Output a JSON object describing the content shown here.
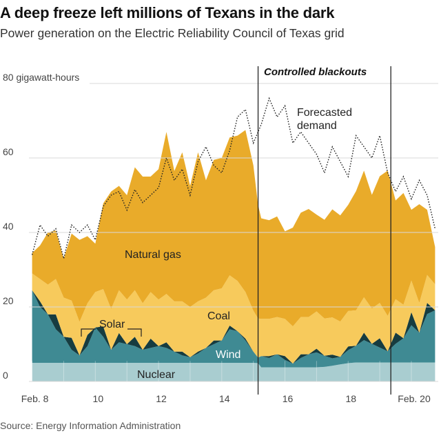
{
  "title": "A deep freeze left millions of Texans in the dark",
  "subtitle": "Power generation on the Electric Reliability Council of Texas grid",
  "source": "Source: Energy Information Administration",
  "colors": {
    "natural_gas": "#E9AB2A",
    "coal": "#F7CA5C",
    "wind": "#3F8A93",
    "solar": "#163C40",
    "nuclear": "#A9CDD0",
    "demand": "#222222",
    "grid": "#D9D9D9"
  },
  "chart_data": {
    "type": "area",
    "title": "A deep freeze left millions of Texans in the dark",
    "subtitle": "Power generation on the Electric Reliability Council of Texas grid",
    "ylabel": "80 gigawatt-hours",
    "y_unit": "gigawatt-hours",
    "ylim": [
      0,
      80
    ],
    "y_ticks": [
      0,
      20,
      40,
      60,
      80
    ],
    "y_tick_labels": [
      "0",
      "20",
      "40",
      "60",
      "80 gigawatt-hours"
    ],
    "xlim": [
      7.9,
      20.85
    ],
    "x_ticks": [
      8,
      10,
      12,
      14,
      16,
      18,
      20
    ],
    "x_tick_labels": [
      "Feb. 8",
      "10",
      "12",
      "14",
      "16",
      "18",
      "Feb. 20"
    ],
    "x_unit": "day of February",
    "grid": true,
    "stacking": "stacked",
    "annotations": {
      "blackouts": "Controlled blackouts",
      "blackout_start": 15.15,
      "blackout_end": 19.35,
      "forecast": [
        "Forecasted",
        "demand"
      ],
      "natural_gas": "Natural gas",
      "coal": "Coal",
      "solar": "Solar",
      "wind": "Wind",
      "nuclear": "Nuclear"
    },
    "x": [
      8.0,
      8.25,
      8.5,
      8.75,
      9.0,
      9.25,
      9.5,
      9.75,
      10.0,
      10.25,
      10.5,
      10.75,
      11.0,
      11.25,
      11.5,
      11.75,
      12.0,
      12.25,
      12.5,
      12.75,
      13.0,
      13.25,
      13.5,
      13.75,
      14.0,
      14.25,
      14.5,
      14.75,
      15.0,
      15.15,
      15.25,
      15.5,
      15.75,
      16.0,
      16.25,
      16.5,
      16.75,
      17.0,
      17.25,
      17.5,
      17.75,
      18.0,
      18.25,
      18.5,
      18.75,
      19.0,
      19.25,
      19.5,
      19.75,
      20.0,
      20.25,
      20.5,
      20.75
    ],
    "series": [
      {
        "name": "Nuclear",
        "values": [
          5.0,
          5.0,
          5.0,
          5.0,
          5.0,
          5.0,
          5.0,
          5.0,
          5.0,
          5.0,
          5.0,
          5.0,
          5.0,
          5.0,
          5.0,
          5.0,
          5.0,
          5.0,
          5.0,
          5.0,
          5.0,
          5.0,
          5.0,
          5.0,
          5.0,
          5.0,
          5.0,
          5.0,
          5.0,
          4.9,
          3.8,
          3.8,
          3.8,
          3.8,
          3.8,
          3.8,
          3.8,
          3.8,
          3.9,
          4.2,
          4.6,
          4.9,
          5.1,
          5.1,
          5.1,
          5.1,
          5.1,
          5.1,
          5.1,
          5.1,
          5.1,
          5.1,
          5.1
        ]
      },
      {
        "name": "Wind",
        "values": [
          19.5,
          15.0,
          13.0,
          9.0,
          7.0,
          3.5,
          2.0,
          4.5,
          9.5,
          7.0,
          3.5,
          5.5,
          5.0,
          4.5,
          3.5,
          4.0,
          4.5,
          4.0,
          3.0,
          2.0,
          1.5,
          2.5,
          4.0,
          5.0,
          6.0,
          9.0,
          8.5,
          6.0,
          3.0,
          1.5,
          3.0,
          2.5,
          3.5,
          2.0,
          1.0,
          2.5,
          3.5,
          4.0,
          3.0,
          2.0,
          2.0,
          3.5,
          4.5,
          6.0,
          5.0,
          4.0,
          3.0,
          5.0,
          6.5,
          10.0,
          8.0,
          13.0,
          14.0
        ]
      },
      {
        "name": "Solar",
        "values": [
          0.0,
          1.5,
          0.0,
          4.0,
          0.0,
          3.2,
          0.0,
          3.0,
          0.0,
          2.8,
          0.0,
          2.5,
          0.0,
          2.5,
          0.0,
          2.5,
          0.0,
          1.5,
          0.0,
          1.0,
          0.0,
          0.5,
          0.0,
          1.0,
          0.0,
          1.0,
          0.0,
          0.5,
          0.0,
          0.0,
          0.0,
          0.5,
          0.0,
          1.0,
          0.0,
          1.0,
          0.0,
          1.0,
          0.0,
          1.0,
          0.0,
          1.0,
          0.0,
          2.0,
          0.0,
          2.5,
          0.0,
          3.0,
          0.0,
          3.5,
          0.0,
          3.0,
          0.0
        ]
      },
      {
        "name": "Coal",
        "values": [
          4.5,
          6.0,
          8.0,
          9.5,
          10.5,
          10.0,
          9.0,
          8.5,
          9.5,
          10.0,
          11.0,
          11.5,
          12.0,
          12.5,
          12.5,
          12.5,
          12.5,
          13.0,
          13.5,
          13.5,
          13.5,
          13.5,
          13.5,
          13.5,
          14.0,
          13.5,
          13.5,
          12.5,
          11.0,
          10.5,
          10.0,
          10.0,
          10.0,
          10.0,
          10.0,
          10.0,
          10.0,
          10.0,
          10.0,
          10.0,
          9.5,
          9.5,
          9.5,
          9.5,
          9.5,
          9.5,
          9.5,
          9.0,
          9.0,
          8.5,
          8.0,
          7.5,
          7.0
        ]
      },
      {
        "name": "Natural gas",
        "values": [
          5.5,
          9.0,
          14.0,
          13.0,
          10.5,
          18.0,
          22.0,
          18.0,
          13.0,
          23.0,
          31.5,
          28.0,
          28.0,
          33.0,
          34.0,
          31.0,
          35.0,
          43.5,
          35.0,
          40.0,
          32.5,
          40.0,
          31.5,
          35.0,
          35.0,
          37.0,
          39.0,
          43.5,
          39.0,
          30.5,
          27.0,
          26.5,
          27.0,
          23.5,
          26.5,
          28.0,
          29.0,
          26.0,
          26.5,
          29.0,
          28.5,
          28.5,
          32.0,
          34.0,
          30.5,
          34.0,
          39.0,
          26.5,
          30.0,
          19.0,
          26.5,
          17.5,
          10.0
        ]
      }
    ],
    "forecasted_demand": {
      "name": "Forecasted demand",
      "x": [
        8.0,
        8.25,
        8.5,
        8.75,
        9.0,
        9.25,
        9.5,
        9.75,
        10.0,
        10.25,
        10.5,
        10.75,
        11.0,
        11.25,
        11.5,
        11.75,
        12.0,
        12.25,
        12.5,
        12.75,
        13.0,
        13.25,
        13.5,
        13.75,
        14.0,
        14.25,
        14.5,
        14.75,
        15.0,
        15.25,
        15.5,
        15.75,
        16.0,
        16.25,
        16.5,
        16.75,
        17.0,
        17.25,
        17.5,
        17.75,
        18.0,
        18.25,
        18.5,
        18.75,
        19.0,
        19.25,
        19.5,
        19.75,
        20.0,
        20.25,
        20.5,
        20.75
      ],
      "values": [
        34.0,
        42.0,
        39.0,
        41.0,
        33.0,
        42.0,
        40.0,
        42.0,
        38.0,
        47.0,
        50.0,
        51.0,
        46.0,
        51.5,
        48.0,
        50.0,
        52.0,
        60.0,
        54.0,
        57.0,
        50.0,
        59.0,
        63.0,
        58.0,
        56.0,
        62.0,
        71.0,
        73.0,
        64.0,
        69.0,
        76.0,
        71.0,
        74.0,
        64.0,
        67.0,
        64.0,
        61.0,
        56.0,
        63.0,
        59.0,
        55.0,
        66.0,
        63.0,
        60.0,
        66.0,
        56.0,
        51.0,
        55.0,
        49.0,
        54.0,
        50.0,
        41.0
      ]
    }
  }
}
